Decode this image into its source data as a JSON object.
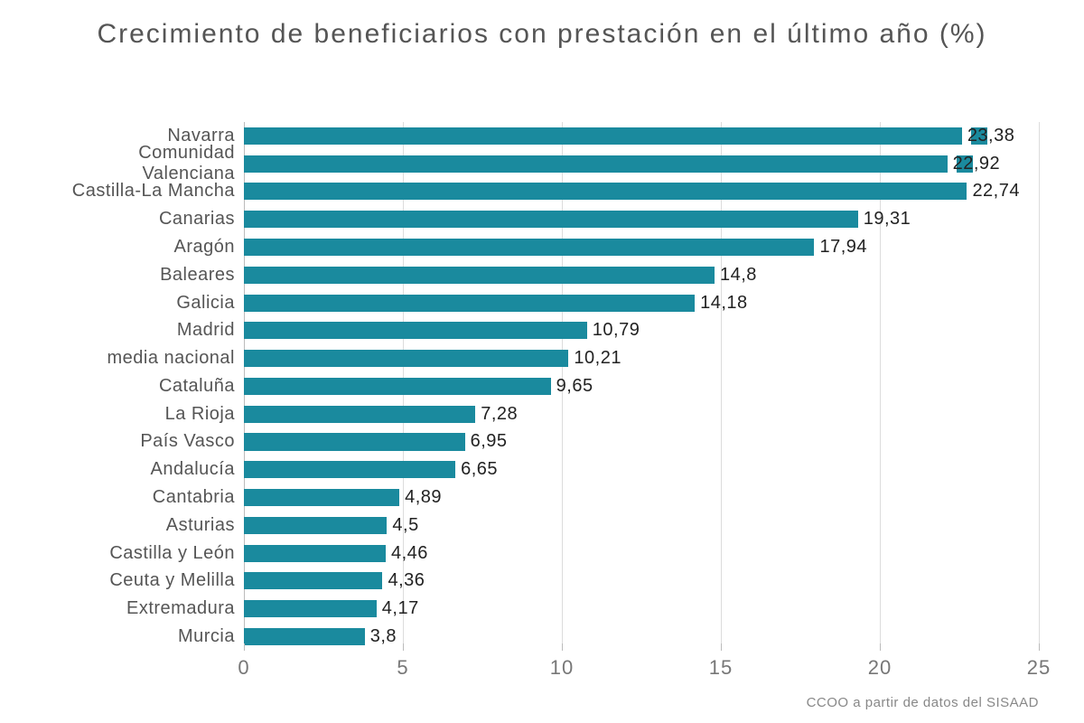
{
  "chart": {
    "type": "bar-horizontal",
    "title": "Crecimiento de beneficiarios con prestación en el último año (%)",
    "title_fontsize": 30,
    "title_color": "#555555",
    "categories": [
      "Navarra",
      "Comunidad Valenciana",
      "Castilla-La Mancha",
      "Canarias",
      "Aragón",
      "Baleares",
      "Galicia",
      "Madrid",
      "media nacional",
      "Cataluña",
      "La Rioja",
      "País Vasco",
      "Andalucía",
      "Cantabria",
      "Asturias",
      "Castilla y León",
      "Ceuta y Melilla",
      "Extremadura",
      "Murcia"
    ],
    "values": [
      23.38,
      22.92,
      22.74,
      19.31,
      17.94,
      14.8,
      14.18,
      10.79,
      10.21,
      9.65,
      7.28,
      6.95,
      6.65,
      4.89,
      4.5,
      4.46,
      4.36,
      4.17,
      3.8
    ],
    "value_labels": [
      "23,38",
      "22,92",
      "22,74",
      "19,31",
      "17,94",
      "14,8",
      "14,18",
      "10,79",
      "10,21",
      "9,65",
      "7,28",
      "6,95",
      "6,65",
      "4,89",
      "4,5",
      "4,46",
      "4,36",
      "4,17",
      "3,8"
    ],
    "broken_bars": [
      true,
      true,
      false,
      false,
      false,
      false,
      false,
      false,
      false,
      false,
      false,
      false,
      false,
      false,
      false,
      false,
      false,
      false,
      false
    ],
    "bar_color": "#1a8a9e",
    "bar_width_ratio": 0.62,
    "background_color": "#ffffff",
    "grid_color": "#dcdcdc",
    "axis_color": "#bbbbbb",
    "ylabel_fontsize": 20,
    "ylabel_color": "#555555",
    "value_fontsize": 20,
    "value_color": "#222222",
    "xlim": [
      0,
      25
    ],
    "xtick_step": 5,
    "xticks": [
      0,
      5,
      10,
      15,
      20,
      25
    ],
    "xtick_fontsize": 22,
    "xtick_color": "#777777",
    "source": "CCOO a partir de datos del SISAAD",
    "source_fontsize": 15,
    "source_color": "#888888"
  }
}
